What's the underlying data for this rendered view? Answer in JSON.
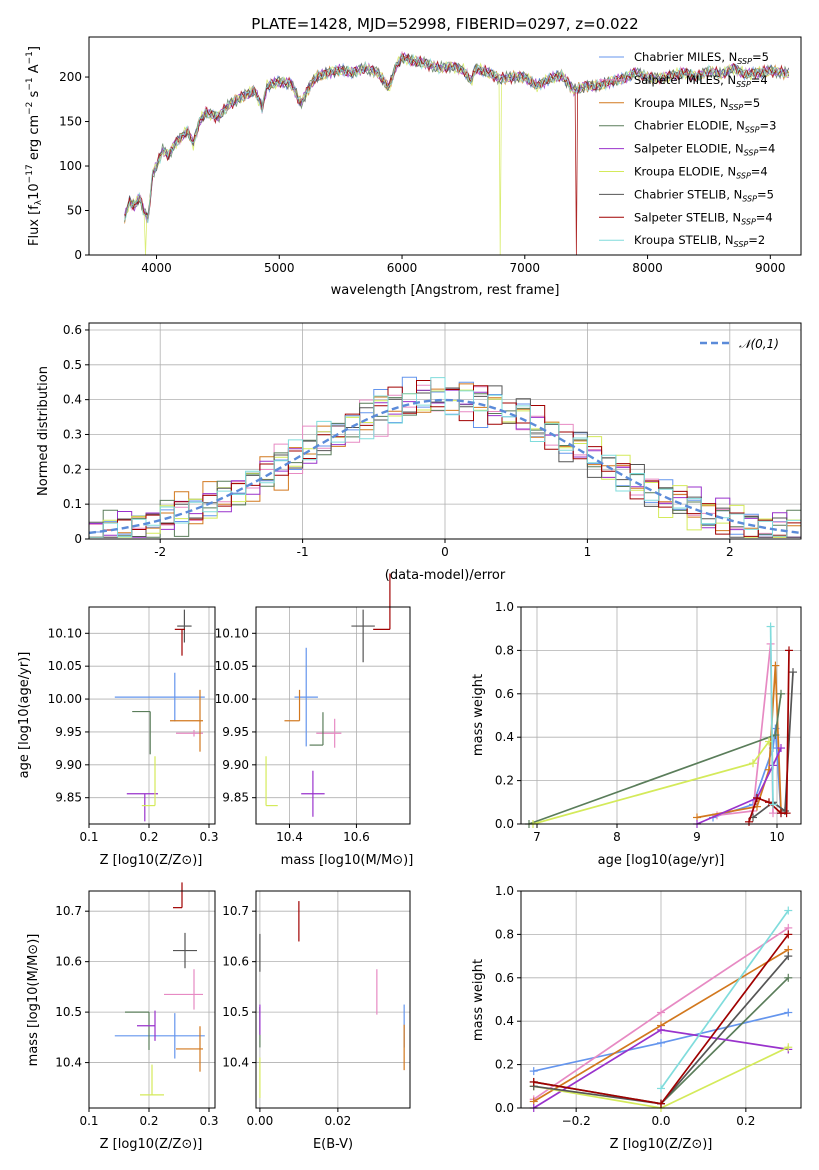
{
  "series_colors": [
    "#6495ed",
    "#e78ac3",
    "#d2781e",
    "#5a7d5a",
    "#9932cc",
    "#d4ea5a",
    "#555555",
    "#a00000",
    "#80dcdc"
  ],
  "chart_data": [
    {
      "type": "line",
      "title": "PLATE=1428, MJD=52998, FIBERID=0297, z=0.022",
      "xlabel": "wavelength [Angstrom, rest frame]",
      "ylabel": "Flux [f_λ 10^-17 erg cm^-2 s^-1 A^-1]",
      "xlim": [
        3450,
        9250
      ],
      "ylim": [
        0,
        245
      ],
      "xticks": [
        4000,
        5000,
        6000,
        7000,
        8000,
        9000
      ],
      "yticks": [
        0,
        50,
        100,
        150,
        200
      ],
      "legend_position": "top-right",
      "legend": [
        {
          "label": "Chabrier MILES, N",
          "sub": "SSP",
          "tail": "=5"
        },
        {
          "label": "Salpeter MILES, N",
          "sub": "SSP",
          "tail": "=4"
        },
        {
          "label": "Kroupa MILES, N",
          "sub": "SSP",
          "tail": "=5"
        },
        {
          "label": "Chabrier ELODIE, N",
          "sub": "SSP",
          "tail": "=3"
        },
        {
          "label": "Salpeter ELODIE, N",
          "sub": "SSP",
          "tail": "=4"
        },
        {
          "label": "Kroupa ELODIE, N",
          "sub": "SSP",
          "tail": "=4"
        },
        {
          "label": "Chabrier STELIB, N",
          "sub": "SSP",
          "tail": "=5"
        },
        {
          "label": "Salpeter STELIB, N",
          "sub": "SSP",
          "tail": "=4"
        },
        {
          "label": "Kroupa STELIB, N",
          "sub": "SSP",
          "tail": "=2"
        }
      ],
      "x": [
        3740,
        3780,
        3820,
        3860,
        3900,
        3930,
        3970,
        4000,
        4050,
        4100,
        4150,
        4200,
        4250,
        4300,
        4350,
        4400,
        4500,
        4600,
        4700,
        4800,
        4861,
        4900,
        5000,
        5100,
        5175,
        5250,
        5300,
        5400,
        5500,
        5600,
        5700,
        5800,
        5893,
        5950,
        6000,
        6100,
        6200,
        6300,
        6400,
        6500,
        6563,
        6600,
        6700,
        6800,
        6900,
        7000,
        7100,
        7200,
        7300,
        7400,
        7500,
        7600,
        7700,
        7800,
        7900,
        8000,
        8100,
        8200,
        8300,
        8400,
        8500,
        8600,
        8700,
        8800,
        8900,
        9000,
        9100
      ],
      "flux": [
        42,
        60,
        55,
        65,
        48,
        40,
        92,
        100,
        118,
        112,
        125,
        132,
        140,
        125,
        150,
        160,
        155,
        170,
        178,
        185,
        165,
        190,
        195,
        192,
        170,
        190,
        200,
        205,
        208,
        205,
        210,
        205,
        188,
        212,
        222,
        218,
        215,
        210,
        212,
        208,
        195,
        210,
        205,
        198,
        200,
        200,
        190,
        198,
        202,
        185,
        190,
        190,
        195,
        198,
        205,
        200,
        198,
        202,
        205,
        200,
        207,
        203,
        210,
        203,
        205,
        207,
        205
      ],
      "dropouts": [
        {
          "series": 5,
          "x": 3910
        },
        {
          "series": 5,
          "x": 6800
        },
        {
          "series": 7,
          "x": 7420
        }
      ]
    },
    {
      "type": "bar",
      "xlabel": "(data-model)/error",
      "ylabel": "Normed distribution",
      "xlim": [
        -2.5,
        2.5
      ],
      "ylim": [
        0,
        0.62
      ],
      "xticks": [
        -2,
        -1,
        0,
        1,
        2
      ],
      "yticks": [
        0.0,
        0.1,
        0.2,
        0.3,
        0.4,
        0.5,
        0.6
      ],
      "reference_curve": "𝒩(0,1)",
      "legend_position": "top-right",
      "bin_edges": [
        -2.5,
        -2.4,
        -2.3,
        -2.2,
        -2.1,
        -2.0,
        -1.9,
        -1.8,
        -1.7,
        -1.6,
        -1.5,
        -1.4,
        -1.3,
        -1.2,
        -1.1,
        -1.0,
        -0.9,
        -0.8,
        -0.7,
        -0.6,
        -0.5,
        -0.4,
        -0.3,
        -0.2,
        -0.1,
        0.0,
        0.1,
        0.2,
        0.3,
        0.4,
        0.5,
        0.6,
        0.7,
        0.8,
        0.9,
        1.0,
        1.1,
        1.2,
        1.3,
        1.4,
        1.5,
        1.6,
        1.7,
        1.8,
        1.9,
        2.0,
        2.1,
        2.2,
        2.3,
        2.4,
        2.5
      ],
      "jitter": [
        0.0,
        0.02,
        -0.015,
        0.025,
        -0.02,
        0.03,
        -0.025,
        0.018,
        -0.03,
        0.022,
        -0.012,
        0.028,
        -0.022,
        0.015,
        -0.028,
        0.02,
        -0.018,
        0.03,
        -0.02,
        0.012,
        0.05,
        -0.04,
        0.07,
        -0.03,
        0.02,
        -0.05,
        0.04,
        -0.06,
        0.03,
        -0.02,
        0.05,
        -0.04,
        0.02,
        -0.03,
        0.04,
        -0.02,
        0.03,
        -0.04,
        0.02,
        -0.03,
        0.04,
        -0.02,
        0.03,
        -0.04,
        0.02,
        -0.03,
        0.025,
        -0.02,
        0.03,
        -0.025
      ]
    },
    {
      "type": "scatter",
      "xlabel": "Z [log10(Z/Z⊙)]",
      "ylabel": "age  [log10(age/yr)]",
      "xlim": [
        0.1,
        0.31
      ],
      "ylim": [
        9.81,
        10.14
      ],
      "xticks": [
        "0.1",
        "0.2",
        "0.3"
      ],
      "yticks": [
        "9.85",
        "9.90",
        "9.95",
        "10.00",
        "10.05",
        "10.10"
      ],
      "points": [
        {
          "s": 0,
          "x": 0.243,
          "xerr": [
            0.1,
            0.05
          ],
          "y": 10.003,
          "yerr": [
            0.037,
            0.037
          ]
        },
        {
          "s": 1,
          "x": 0.275,
          "xerr": [
            0.03,
            0.015
          ],
          "y": 9.948,
          "yerr": [
            0.005,
            0.005
          ]
        },
        {
          "s": 2,
          "x": 0.285,
          "xerr": [
            0.05,
            0.005
          ],
          "y": 9.967,
          "yerr": [
            0.047,
            0.047
          ]
        },
        {
          "s": 3,
          "x": 0.202,
          "xerr": [
            0.03,
            0.0
          ],
          "y": 9.981,
          "yerr": [
            0.065,
            0.0
          ]
        },
        {
          "s": 4,
          "x": 0.193,
          "xerr": [
            0.03,
            0.022
          ],
          "y": 9.856,
          "yerr": [
            0.042,
            0.0
          ]
        },
        {
          "s": 5,
          "x": 0.21,
          "xerr": [
            0.022,
            0.0
          ],
          "y": 9.838,
          "yerr": [
            0.0,
            0.075
          ]
        },
        {
          "s": 6,
          "x": 0.259,
          "xerr": [
            0.012,
            0.012
          ],
          "y": 10.111,
          "yerr": [
            0.025,
            0.025
          ]
        },
        {
          "s": 7,
          "x": 0.255,
          "xerr": [
            0.012,
            0.005
          ],
          "y": 10.106,
          "yerr": [
            0.04,
            0.0
          ]
        }
      ]
    },
    {
      "type": "scatter",
      "xlabel": "mass [log10(M/M⊙)]",
      "ylabel": "",
      "xlim": [
        10.3,
        10.76
      ],
      "ylim": [
        9.81,
        10.14
      ],
      "xticks": [
        "10.4",
        "10.6"
      ],
      "yticks": [
        "9.85",
        "9.90",
        "9.95",
        "10.00",
        "10.05",
        "10.10"
      ],
      "points": [
        {
          "s": 0,
          "x": 10.45,
          "xerr": [
            0.035,
            0.035
          ],
          "y": 10.003,
          "yerr": [
            0.075,
            0.075
          ]
        },
        {
          "s": 1,
          "x": 10.535,
          "xerr": [
            0.055,
            0.02
          ],
          "y": 9.948,
          "yerr": [
            0.022,
            0.022
          ]
        },
        {
          "s": 2,
          "x": 10.43,
          "xerr": [
            0.045,
            0.0
          ],
          "y": 9.967,
          "yerr": [
            0.0,
            0.047
          ]
        },
        {
          "s": 3,
          "x": 10.5,
          "xerr": [
            0.04,
            0.0
          ],
          "y": 9.93,
          "yerr": [
            0.0,
            0.05
          ]
        },
        {
          "s": 4,
          "x": 10.47,
          "xerr": [
            0.035,
            0.035
          ],
          "y": 9.856,
          "yerr": [
            0.035,
            0.035
          ]
        },
        {
          "s": 5,
          "x": 10.33,
          "xerr": [
            0.0,
            0.035
          ],
          "y": 9.838,
          "yerr": [
            0.0,
            0.075
          ]
        },
        {
          "s": 6,
          "x": 10.62,
          "xerr": [
            0.035,
            0.035
          ],
          "y": 10.111,
          "yerr": [
            0.055,
            0.025
          ]
        },
        {
          "s": 7,
          "x": 10.7,
          "xerr": [
            0.05,
            0.0
          ],
          "y": 10.106,
          "yerr": [
            0.0,
            0.085
          ]
        }
      ]
    },
    {
      "type": "line",
      "xlabel": "age  [log10(age/yr)]",
      "ylabel": "mass weight",
      "xlim": [
        6.8,
        10.3
      ],
      "ylim": [
        0.0,
        1.0
      ],
      "xticks": [
        "7",
        "8",
        "9",
        "10"
      ],
      "yticks": [
        "0.0",
        "0.2",
        "0.4",
        "0.6",
        "0.8",
        "1.0"
      ],
      "series": [
        {
          "s": 0,
          "x": [
            9.2,
            9.7,
            9.95,
            9.98,
            10.05
          ],
          "y": [
            0.03,
            0.09,
            0.35,
            0.44,
            0.05
          ]
        },
        {
          "s": 1,
          "x": [
            9.25,
            9.7,
            9.92,
            9.95
          ],
          "y": [
            0.04,
            0.06,
            0.83,
            0.05
          ]
        },
        {
          "s": 2,
          "x": [
            9.0,
            9.75,
            9.9,
            9.98,
            10.05
          ],
          "y": [
            0.03,
            0.08,
            0.25,
            0.73,
            0.06
          ]
        },
        {
          "s": 3,
          "x": [
            6.9,
            9.98,
            10.05
          ],
          "y": [
            0.0,
            0.41,
            0.6
          ]
        },
        {
          "s": 4,
          "x": [
            9.0,
            9.75,
            9.95,
            10.05
          ],
          "y": [
            0.0,
            0.12,
            0.27,
            0.35
          ]
        },
        {
          "s": 5,
          "x": [
            6.95,
            9.7,
            9.9
          ],
          "y": [
            0.0,
            0.28,
            0.38
          ]
        },
        {
          "s": 6,
          "x": [
            9.7,
            9.95,
            10.1,
            10.2
          ],
          "y": [
            0.03,
            0.1,
            0.06,
            0.7
          ]
        },
        {
          "s": 7,
          "x": [
            9.65,
            9.75,
            9.9,
            10.05,
            10.12,
            10.15
          ],
          "y": [
            0.01,
            0.12,
            0.1,
            0.05,
            0.05,
            0.8
          ]
        },
        {
          "s": 8,
          "x": [
            9.92,
            9.95
          ],
          "y": [
            0.91,
            0.09
          ]
        }
      ]
    },
    {
      "type": "scatter",
      "xlabel": "Z [log10(Z/Z⊙)]",
      "ylabel": "mass [log10(M/M⊙)]",
      "xlim": [
        0.1,
        0.31
      ],
      "ylim": [
        10.31,
        10.74
      ],
      "xticks": [
        "0.1",
        "0.2",
        "0.3"
      ],
      "yticks": [
        "10.4",
        "10.5",
        "10.6",
        "10.7"
      ],
      "points": [
        {
          "s": 0,
          "x": 0.243,
          "xerr": [
            0.1,
            0.05
          ],
          "y": 10.453,
          "yerr": [
            0.045,
            0.045
          ]
        },
        {
          "s": 1,
          "x": 0.275,
          "xerr": [
            0.05,
            0.015
          ],
          "y": 10.535,
          "yerr": [
            0.03,
            0.05
          ]
        },
        {
          "s": 2,
          "x": 0.285,
          "xerr": [
            0.04,
            0.005
          ],
          "y": 10.427,
          "yerr": [
            0.045,
            0.045
          ]
        },
        {
          "s": 3,
          "x": 0.2,
          "xerr": [
            0.04,
            0.0
          ],
          "y": 10.5,
          "yerr": [
            0.075,
            0.0
          ]
        },
        {
          "s": 4,
          "x": 0.21,
          "xerr": [
            0.03,
            0.0
          ],
          "y": 10.473,
          "yerr": [
            0.03,
            0.03
          ]
        },
        {
          "s": 5,
          "x": 0.205,
          "xerr": [
            0.02,
            0.02
          ],
          "y": 10.336,
          "yerr": [
            0.0,
            0.06
          ]
        },
        {
          "s": 6,
          "x": 0.26,
          "xerr": [
            0.02,
            0.02
          ],
          "y": 10.622,
          "yerr": [
            0.035,
            0.035
          ]
        },
        {
          "s": 7,
          "x": 0.255,
          "xerr": [
            0.015,
            0.0
          ],
          "y": 10.707,
          "yerr": [
            0.0,
            0.05
          ]
        }
      ]
    },
    {
      "type": "scatter",
      "xlabel": "E(B-V)",
      "ylabel": "",
      "xlim": [
        -0.001,
        0.0385
      ],
      "ylim": [
        10.31,
        10.74
      ],
      "xticks": [
        "0.00",
        "0.02"
      ],
      "yticks": [
        "10.4",
        "10.5",
        "10.6",
        "10.7"
      ],
      "points": [
        {
          "s": 0,
          "x": 0.037,
          "xerr": [
            0,
            0
          ],
          "y": 10.47,
          "yerr": [
            0.04,
            0.045
          ]
        },
        {
          "s": 1,
          "x": 0.03,
          "xerr": [
            0,
            0
          ],
          "y": 10.535,
          "yerr": [
            0.04,
            0.05
          ]
        },
        {
          "s": 2,
          "x": 0.037,
          "xerr": [
            0,
            0
          ],
          "y": 10.43,
          "yerr": [
            0.045,
            0.045
          ]
        },
        {
          "s": 3,
          "x": 0.0,
          "xerr": [
            0,
            0
          ],
          "y": 10.47,
          "yerr": [
            0.04,
            0.04
          ]
        },
        {
          "s": 4,
          "x": 0.0,
          "xerr": [
            0,
            0
          ],
          "y": 10.49,
          "yerr": [
            0.035,
            0.025
          ]
        },
        {
          "s": 5,
          "x": 0.0,
          "xerr": [
            0,
            0
          ],
          "y": 10.37,
          "yerr": [
            0.04,
            0.04
          ]
        },
        {
          "s": 6,
          "x": 0.0,
          "xerr": [
            0,
            0
          ],
          "y": 10.62,
          "yerr": [
            0.04,
            0.035
          ]
        },
        {
          "s": 7,
          "x": 0.01,
          "xerr": [
            0,
            0
          ],
          "y": 10.68,
          "yerr": [
            0.04,
            0.04
          ]
        }
      ]
    },
    {
      "type": "line",
      "xlabel": "Z [log10(Z/Z⊙)]",
      "ylabel": "mass weight",
      "xlim": [
        -0.33,
        0.33
      ],
      "ylim": [
        0.0,
        1.0
      ],
      "xticks": [
        "−0.2",
        "0.0",
        "0.2"
      ],
      "yticks": [
        "0.0",
        "0.2",
        "0.4",
        "0.6",
        "0.8",
        "1.0"
      ],
      "series": [
        {
          "s": 0,
          "x": [
            -0.3,
            0.0,
            0.3
          ],
          "y": [
            0.17,
            0.3,
            0.44
          ]
        },
        {
          "s": 1,
          "x": [
            -0.3,
            0.0,
            0.3
          ],
          "y": [
            0.04,
            0.44,
            0.83
          ]
        },
        {
          "s": 2,
          "x": [
            -0.3,
            0.0,
            0.3
          ],
          "y": [
            0.03,
            0.38,
            0.73
          ]
        },
        {
          "s": 3,
          "x": [
            -0.3,
            0.0,
            0.3
          ],
          "y": [
            0.12,
            0.02,
            0.6
          ]
        },
        {
          "s": 4,
          "x": [
            -0.3,
            0.0,
            0.3
          ],
          "y": [
            0.0,
            0.36,
            0.27
          ]
        },
        {
          "s": 5,
          "x": [
            -0.3,
            0.0,
            0.3
          ],
          "y": [
            0.1,
            0.0,
            0.28
          ]
        },
        {
          "s": 6,
          "x": [
            -0.3,
            0.0,
            0.3
          ],
          "y": [
            0.1,
            0.02,
            0.7
          ]
        },
        {
          "s": 7,
          "x": [
            -0.3,
            0.0,
            0.3
          ],
          "y": [
            0.12,
            0.02,
            0.8
          ]
        },
        {
          "s": 8,
          "x": [
            0.0,
            0.3
          ],
          "y": [
            0.09,
            0.91
          ]
        }
      ]
    }
  ]
}
